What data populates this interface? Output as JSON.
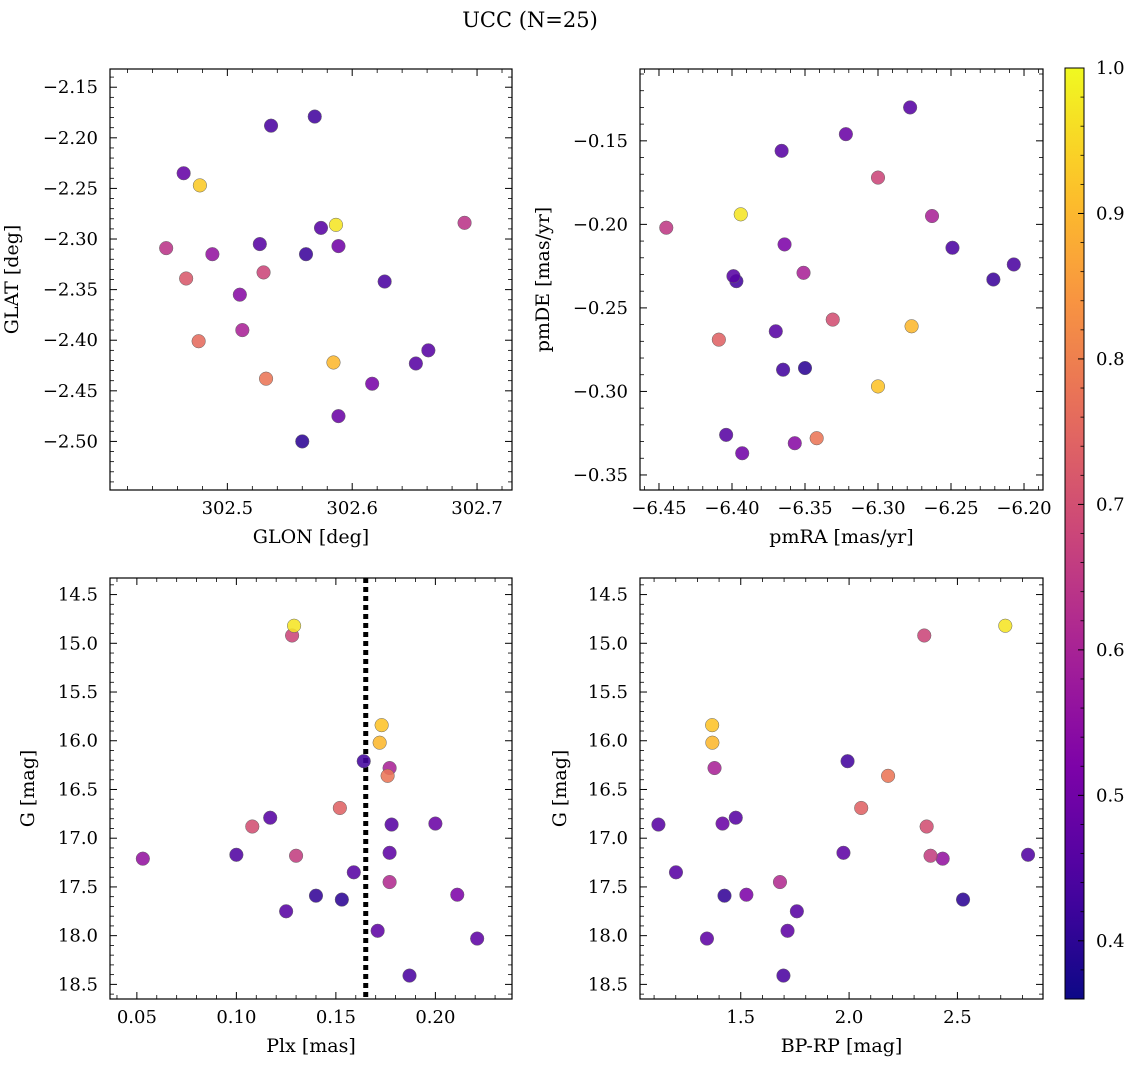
{
  "figure": {
    "title": "UCC (N=25)"
  },
  "colorbar": {
    "cmap": "plasma",
    "vmin": 0.36,
    "vmax": 1.0,
    "ticks": [
      0.4,
      0.5,
      0.6,
      0.7,
      0.8,
      0.9,
      1.0
    ],
    "tick_labels": [
      "0.4",
      "0.5",
      "0.6",
      "0.7",
      "0.8",
      "0.9",
      "1.0"
    ]
  },
  "chart_data": [
    {
      "type": "scatter",
      "xlabel": "GLON [deg]",
      "ylabel": "GLAT [deg]",
      "xlim": [
        302.406,
        302.728
      ],
      "ylim": [
        -2.548,
        -2.132
      ],
      "x_ticks": [
        302.5,
        302.6,
        302.7
      ],
      "x_tick_labels": [
        "302.5",
        "302.6",
        "302.7"
      ],
      "y_ticks": [
        -2.5,
        -2.45,
        -2.4,
        -2.35,
        -2.3,
        -2.25,
        -2.2,
        -2.15
      ],
      "y_tick_labels": [
        "−2.50",
        "−2.45",
        "−2.40",
        "−2.35",
        "−2.30",
        "−2.25",
        "−2.20",
        "−2.15"
      ],
      "invert_y": false,
      "points": [
        {
          "x": 302.478,
          "y": -2.247,
          "c": 0.93
        },
        {
          "x": 302.587,
          "y": -2.286,
          "c": 0.97
        },
        {
          "x": 302.585,
          "y": -2.422,
          "c": 0.9
        },
        {
          "x": 302.467,
          "y": -2.339,
          "c": 0.72
        },
        {
          "x": 302.477,
          "y": -2.401,
          "c": 0.76
        },
        {
          "x": 302.531,
          "y": -2.438,
          "c": 0.78
        },
        {
          "x": 302.69,
          "y": -2.284,
          "c": 0.64
        },
        {
          "x": 302.529,
          "y": -2.333,
          "c": 0.68
        },
        {
          "x": 302.451,
          "y": -2.309,
          "c": 0.64
        },
        {
          "x": 302.488,
          "y": -2.315,
          "c": 0.56
        },
        {
          "x": 302.512,
          "y": -2.39,
          "c": 0.6
        },
        {
          "x": 302.51,
          "y": -2.355,
          "c": 0.54
        },
        {
          "x": 302.616,
          "y": -2.443,
          "c": 0.51
        },
        {
          "x": 302.589,
          "y": -2.307,
          "c": 0.5
        },
        {
          "x": 302.589,
          "y": -2.475,
          "c": 0.49
        },
        {
          "x": 302.465,
          "y": -2.235,
          "c": 0.48
        },
        {
          "x": 302.526,
          "y": -2.305,
          "c": 0.46
        },
        {
          "x": 302.575,
          "y": -2.289,
          "c": 0.46
        },
        {
          "x": 302.661,
          "y": -2.41,
          "c": 0.46
        },
        {
          "x": 302.651,
          "y": -2.423,
          "c": 0.46
        },
        {
          "x": 302.626,
          "y": -2.342,
          "c": 0.44
        },
        {
          "x": 302.535,
          "y": -2.188,
          "c": 0.44
        },
        {
          "x": 302.57,
          "y": -2.179,
          "c": 0.43
        },
        {
          "x": 302.563,
          "y": -2.315,
          "c": 0.42
        },
        {
          "x": 302.56,
          "y": -2.5,
          "c": 0.4
        }
      ]
    },
    {
      "type": "scatter",
      "xlabel": "pmRA [mas/yr]",
      "ylabel": "pmDE [mas/yr]",
      "xlim": [
        -6.463,
        -6.187
      ],
      "ylim": [
        -0.359,
        -0.107
      ],
      "x_ticks": [
        -6.45,
        -6.4,
        -6.35,
        -6.3,
        -6.25,
        -6.2
      ],
      "x_tick_labels": [
        "−6.45",
        "−6.40",
        "−6.35",
        "−6.30",
        "−6.25",
        "−6.20"
      ],
      "y_ticks": [
        -0.35,
        -0.3,
        -0.25,
        -0.2,
        -0.15
      ],
      "y_tick_labels": [
        "−0.35",
        "−0.30",
        "−0.25",
        "−0.20",
        "−0.15"
      ],
      "invert_y": false,
      "points": [
        {
          "x": -6.394,
          "y": -0.194,
          "c": 0.97
        },
        {
          "x": -6.3,
          "y": -0.297,
          "c": 0.92
        },
        {
          "x": -6.277,
          "y": -0.261,
          "c": 0.9
        },
        {
          "x": -6.342,
          "y": -0.328,
          "c": 0.78
        },
        {
          "x": -6.409,
          "y": -0.269,
          "c": 0.74
        },
        {
          "x": -6.3,
          "y": -0.172,
          "c": 0.68
        },
        {
          "x": -6.331,
          "y": -0.257,
          "c": 0.7
        },
        {
          "x": -6.445,
          "y": -0.202,
          "c": 0.65
        },
        {
          "x": -6.263,
          "y": -0.195,
          "c": 0.6
        },
        {
          "x": -6.351,
          "y": -0.229,
          "c": 0.6
        },
        {
          "x": -6.357,
          "y": -0.331,
          "c": 0.54
        },
        {
          "x": -6.364,
          "y": -0.212,
          "c": 0.52
        },
        {
          "x": -6.322,
          "y": -0.146,
          "c": 0.49
        },
        {
          "x": -6.393,
          "y": -0.337,
          "c": 0.5
        },
        {
          "x": -6.278,
          "y": -0.13,
          "c": 0.46
        },
        {
          "x": -6.366,
          "y": -0.156,
          "c": 0.46
        },
        {
          "x": -6.404,
          "y": -0.326,
          "c": 0.46
        },
        {
          "x": -6.399,
          "y": -0.231,
          "c": 0.46
        },
        {
          "x": -6.37,
          "y": -0.264,
          "c": 0.46
        },
        {
          "x": -6.249,
          "y": -0.214,
          "c": 0.44
        },
        {
          "x": -6.207,
          "y": -0.224,
          "c": 0.44
        },
        {
          "x": -6.397,
          "y": -0.234,
          "c": 0.43
        },
        {
          "x": -6.365,
          "y": -0.287,
          "c": 0.43
        },
        {
          "x": -6.221,
          "y": -0.233,
          "c": 0.42
        },
        {
          "x": -6.35,
          "y": -0.286,
          "c": 0.4
        }
      ]
    },
    {
      "type": "scatter",
      "xlabel": "Plx [mas]",
      "ylabel": "G [mag]",
      "xlim": [
        0.0365,
        0.2385
      ],
      "ylim": [
        18.65,
        14.33
      ],
      "x_ticks": [
        0.05,
        0.1,
        0.15,
        0.2
      ],
      "x_tick_labels": [
        "0.05",
        "0.10",
        "0.15",
        "0.20"
      ],
      "y_ticks": [
        14.5,
        15.0,
        15.5,
        16.0,
        16.5,
        17.0,
        17.5,
        18.0,
        18.5
      ],
      "y_tick_labels": [
        "14.5",
        "15.0",
        "15.5",
        "16.0",
        "16.5",
        "17.0",
        "17.5",
        "18.0",
        "18.5"
      ],
      "invert_y": true,
      "vline_x": 0.165,
      "points": [
        {
          "x": 0.129,
          "y": 14.82,
          "c": 0.97
        },
        {
          "x": 0.173,
          "y": 15.84,
          "c": 0.92
        },
        {
          "x": 0.172,
          "y": 16.02,
          "c": 0.9
        },
        {
          "x": 0.176,
          "y": 16.36,
          "c": 0.78
        },
        {
          "x": 0.152,
          "y": 16.69,
          "c": 0.74
        },
        {
          "x": 0.128,
          "y": 14.92,
          "c": 0.68
        },
        {
          "x": 0.108,
          "y": 16.88,
          "c": 0.7
        },
        {
          "x": 0.13,
          "y": 17.18,
          "c": 0.66
        },
        {
          "x": 0.177,
          "y": 17.45,
          "c": 0.62
        },
        {
          "x": 0.177,
          "y": 16.28,
          "c": 0.6
        },
        {
          "x": 0.053,
          "y": 17.21,
          "c": 0.56
        },
        {
          "x": 0.211,
          "y": 17.58,
          "c": 0.52
        },
        {
          "x": 0.2,
          "y": 16.85,
          "c": 0.49
        },
        {
          "x": 0.221,
          "y": 18.03,
          "c": 0.47
        },
        {
          "x": 0.177,
          "y": 17.15,
          "c": 0.47
        },
        {
          "x": 0.171,
          "y": 17.95,
          "c": 0.47
        },
        {
          "x": 0.117,
          "y": 16.79,
          "c": 0.46
        },
        {
          "x": 0.159,
          "y": 17.35,
          "c": 0.46
        },
        {
          "x": 0.178,
          "y": 16.86,
          "c": 0.46
        },
        {
          "x": 0.125,
          "y": 17.75,
          "c": 0.46
        },
        {
          "x": 0.1,
          "y": 17.17,
          "c": 0.45
        },
        {
          "x": 0.187,
          "y": 18.41,
          "c": 0.44
        },
        {
          "x": 0.164,
          "y": 16.21,
          "c": 0.43
        },
        {
          "x": 0.14,
          "y": 17.59,
          "c": 0.41
        },
        {
          "x": 0.153,
          "y": 17.63,
          "c": 0.4
        }
      ]
    },
    {
      "type": "scatter",
      "xlabel": "BP-RP [mag]",
      "ylabel": "G [mag]",
      "xlim": [
        1.035,
        2.895
      ],
      "ylim": [
        18.65,
        14.33
      ],
      "x_ticks": [
        1.5,
        2.0,
        2.5
      ],
      "x_tick_labels": [
        "1.5",
        "2.0",
        "2.5"
      ],
      "y_ticks": [
        14.5,
        15.0,
        15.5,
        16.0,
        16.5,
        17.0,
        17.5,
        18.0,
        18.5
      ],
      "y_tick_labels": [
        "14.5",
        "15.0",
        "15.5",
        "16.0",
        "16.5",
        "17.0",
        "17.5",
        "18.0",
        "18.5"
      ],
      "invert_y": true,
      "points": [
        {
          "x": 2.721,
          "y": 14.82,
          "c": 0.97
        },
        {
          "x": 1.368,
          "y": 15.84,
          "c": 0.92
        },
        {
          "x": 1.369,
          "y": 16.02,
          "c": 0.9
        },
        {
          "x": 2.18,
          "y": 16.36,
          "c": 0.78
        },
        {
          "x": 2.056,
          "y": 16.69,
          "c": 0.74
        },
        {
          "x": 2.347,
          "y": 14.92,
          "c": 0.68
        },
        {
          "x": 2.358,
          "y": 16.88,
          "c": 0.7
        },
        {
          "x": 2.376,
          "y": 17.18,
          "c": 0.66
        },
        {
          "x": 1.681,
          "y": 17.45,
          "c": 0.62
        },
        {
          "x": 1.379,
          "y": 16.28,
          "c": 0.6
        },
        {
          "x": 2.432,
          "y": 17.21,
          "c": 0.56
        },
        {
          "x": 1.526,
          "y": 17.58,
          "c": 0.52
        },
        {
          "x": 1.416,
          "y": 16.85,
          "c": 0.49
        },
        {
          "x": 1.344,
          "y": 18.03,
          "c": 0.47
        },
        {
          "x": 1.974,
          "y": 17.15,
          "c": 0.47
        },
        {
          "x": 1.716,
          "y": 17.95,
          "c": 0.47
        },
        {
          "x": 1.477,
          "y": 16.79,
          "c": 0.46
        },
        {
          "x": 1.201,
          "y": 17.35,
          "c": 0.46
        },
        {
          "x": 1.12,
          "y": 16.86,
          "c": 0.46
        },
        {
          "x": 1.759,
          "y": 17.75,
          "c": 0.46
        },
        {
          "x": 2.826,
          "y": 17.17,
          "c": 0.45
        },
        {
          "x": 1.697,
          "y": 18.41,
          "c": 0.44
        },
        {
          "x": 1.993,
          "y": 16.21,
          "c": 0.43
        },
        {
          "x": 1.425,
          "y": 17.59,
          "c": 0.41
        },
        {
          "x": 2.526,
          "y": 17.63,
          "c": 0.4
        }
      ]
    }
  ]
}
